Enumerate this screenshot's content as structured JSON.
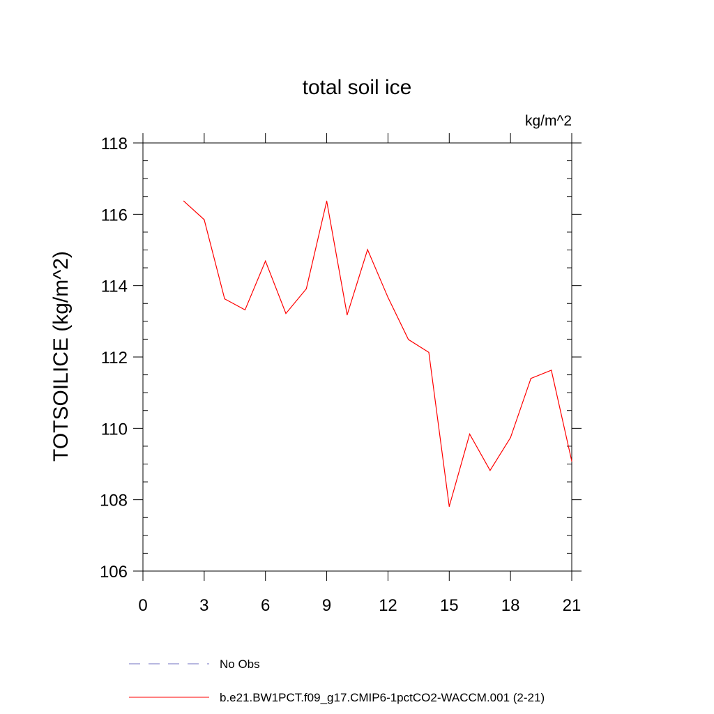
{
  "chart_data": {
    "type": "line",
    "title": "total soil ice",
    "units_label": "kg/m^2",
    "ylabel": "TOTSOILICE  (kg/m^2)",
    "xlabel": "",
    "xlim": [
      0,
      21
    ],
    "ylim": [
      106,
      118
    ],
    "xticks": [
      0,
      3,
      6,
      9,
      12,
      15,
      18,
      21
    ],
    "yticks": [
      106,
      108,
      110,
      112,
      114,
      116,
      118
    ],
    "grid": false,
    "legend_position": "bottom",
    "series": [
      {
        "name": "No Obs",
        "color": "#6f6fc0",
        "dash": "dashed",
        "x": [],
        "y": []
      },
      {
        "name": "b.e21.BW1PCT.f09_g17.CMIP6-1pctCO2-WACCM.001 (2-21)",
        "color": "#ff0000",
        "dash": "solid",
        "x": [
          2,
          3,
          4,
          5,
          6,
          7,
          8,
          9,
          10,
          11,
          12,
          13,
          14,
          15,
          16,
          17,
          18,
          19,
          20,
          21
        ],
        "y": [
          116.37,
          115.85,
          113.63,
          113.32,
          114.69,
          113.22,
          113.91,
          116.37,
          113.18,
          115.01,
          113.67,
          112.49,
          112.13,
          107.81,
          109.84,
          108.82,
          109.74,
          111.4,
          111.63,
          109.08
        ]
      }
    ]
  }
}
